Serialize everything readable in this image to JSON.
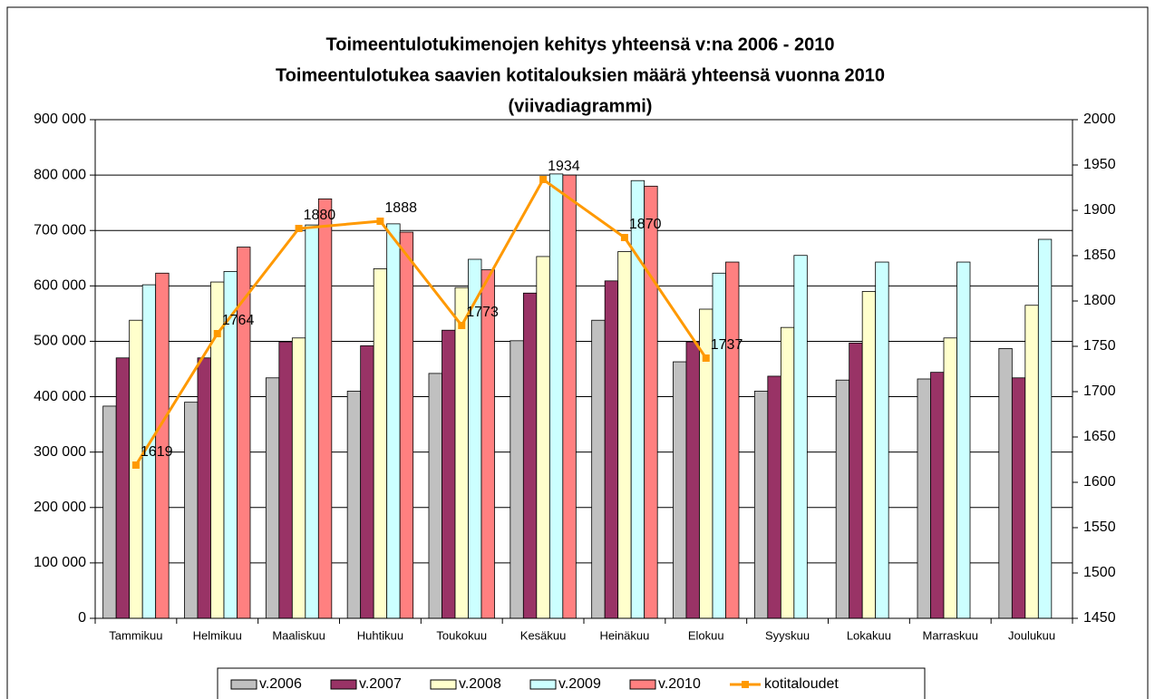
{
  "chart_data": {
    "type": "bar",
    "title": [
      "Toimeentulotukimenojen kehitys yhteensä v:na 2006 - 2010",
      "Toimeentulotukea saavien kotitalouksien määrä yhteensä vuonna 2010",
      "(viivadiagrammi)"
    ],
    "categories": [
      "Tammikuu",
      "Helmikuu",
      "Maaliskuu",
      "Huhtikuu",
      "Toukokuu",
      "Kesäkuu",
      "Heinäkuu",
      "Elokuu",
      "Syyskuu",
      "Lokakuu",
      "Marraskuu",
      "Joulukuu"
    ],
    "series": [
      {
        "name": "v.2006",
        "color": "#c0c0c0",
        "values": [
          383000,
          390000,
          434000,
          410000,
          442000,
          501000,
          538000,
          463000,
          410000,
          430000,
          432000,
          487000
        ]
      },
      {
        "name": "v.2007",
        "color": "#993366",
        "values": [
          470000,
          470000,
          499000,
          492000,
          520000,
          587000,
          609000,
          499000,
          437000,
          497000,
          444000,
          434000
        ]
      },
      {
        "name": "v.2008",
        "color": "#ffffcc",
        "values": [
          538000,
          607000,
          506000,
          631000,
          597000,
          653000,
          662000,
          558000,
          525000,
          590000,
          506000,
          565000
        ]
      },
      {
        "name": "v.2009",
        "color": "#ccffff",
        "values": [
          602000,
          626000,
          710000,
          712000,
          648000,
          802000,
          790000,
          623000,
          655000,
          643000,
          643000,
          684000
        ]
      },
      {
        "name": "v.2010",
        "color": "#ff8080",
        "values": [
          623000,
          670000,
          757000,
          697000,
          629000,
          800000,
          780000,
          643000,
          null,
          null,
          null,
          null
        ]
      },
      {
        "name": "kotitaloudet",
        "color": "#ff9900",
        "type": "line",
        "axis": "y2",
        "values": [
          1619,
          1764,
          1880,
          1888,
          1773,
          1934,
          1870,
          1737,
          null,
          null,
          null,
          null
        ]
      }
    ],
    "ylim": [
      0,
      900000
    ],
    "yticks": [
      0,
      {
        "value": 100000,
        "label": "100 000"
      },
      {
        "value": 200000,
        "label": "200 000"
      },
      {
        "value": 300000,
        "label": "300 000"
      },
      {
        "value": 400000,
        "label": "400 000"
      },
      {
        "value": 500000,
        "label": "500 000"
      },
      {
        "value": 600000,
        "label": "600 000"
      },
      {
        "value": 700000,
        "label": "700 000"
      },
      {
        "value": 800000,
        "label": "800 000"
      },
      {
        "value": 900000,
        "label": "900 000"
      }
    ],
    "y2lim": [
      1450,
      2000
    ],
    "y2ticks": [
      1450,
      1500,
      1550,
      1600,
      1650,
      1700,
      1750,
      1800,
      1850,
      1900,
      1950,
      2000
    ],
    "grid": true,
    "legend": "bottom"
  }
}
